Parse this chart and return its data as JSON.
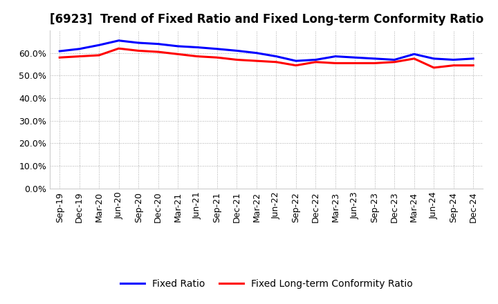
{
  "title": "[6923]  Trend of Fixed Ratio and Fixed Long-term Conformity Ratio",
  "x_labels": [
    "Sep-19",
    "Dec-19",
    "Mar-20",
    "Jun-20",
    "Sep-20",
    "Dec-20",
    "Mar-21",
    "Jun-21",
    "Sep-21",
    "Dec-21",
    "Mar-22",
    "Jun-22",
    "Sep-22",
    "Dec-22",
    "Mar-23",
    "Jun-23",
    "Sep-23",
    "Dec-23",
    "Mar-24",
    "Jun-24",
    "Sep-24",
    "Dec-24"
  ],
  "fixed_ratio": [
    60.8,
    61.8,
    63.5,
    65.5,
    64.5,
    64.0,
    63.0,
    62.5,
    61.8,
    61.0,
    60.0,
    58.5,
    56.5,
    57.0,
    58.5,
    58.0,
    57.5,
    57.0,
    59.5,
    57.5,
    57.0,
    57.5
  ],
  "fixed_lt_ratio": [
    58.0,
    58.5,
    59.0,
    62.0,
    61.0,
    60.5,
    59.5,
    58.5,
    58.0,
    57.0,
    56.5,
    56.0,
    54.5,
    56.0,
    55.5,
    55.5,
    55.5,
    56.0,
    57.5,
    53.5,
    54.5,
    54.5
  ],
  "fixed_ratio_color": "#0000FF",
  "fixed_lt_ratio_color": "#FF0000",
  "ylim_min": 0,
  "ylim_max": 70,
  "yticks": [
    0,
    10,
    20,
    30,
    40,
    50,
    60
  ],
  "background_color": "#FFFFFF",
  "grid_color": "#AAAAAA",
  "legend_fixed_ratio": "Fixed Ratio",
  "legend_fixed_lt_ratio": "Fixed Long-term Conformity Ratio",
  "title_fontsize": 12,
  "tick_fontsize": 9,
  "legend_fontsize": 10
}
